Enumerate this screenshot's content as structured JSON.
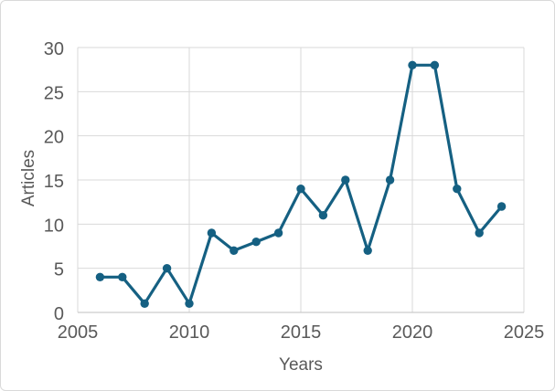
{
  "chart_data": {
    "type": "line",
    "title": "",
    "xlabel": "Years",
    "ylabel": "Articles",
    "series": [
      {
        "name": "Articles",
        "x": [
          2006,
          2007,
          2008,
          2009,
          2010,
          2011,
          2012,
          2013,
          2014,
          2015,
          2016,
          2017,
          2018,
          2019,
          2020,
          2021,
          2022,
          2023,
          2024
        ],
        "values": [
          4,
          4,
          1,
          5,
          1,
          9,
          7,
          8,
          9,
          14,
          11,
          15,
          7,
          15,
          28,
          28,
          14,
          9,
          12
        ]
      }
    ],
    "xlim": [
      2005,
      2025
    ],
    "ylim": [
      0,
      30
    ],
    "x_ticks": [
      2005,
      2010,
      2015,
      2020,
      2025
    ],
    "y_ticks": [
      0,
      5,
      10,
      15,
      20,
      25,
      30
    ],
    "grid": true,
    "legend": "none",
    "marker": "circle",
    "colors": {
      "line": "#156082",
      "marker": "#156082",
      "gridline": "#d9d9d9",
      "axis_line": "#bfbfbf",
      "tick_label": "#595959",
      "axis_title": "#595959",
      "background": "#ffffff",
      "frame_border": "#d9d9d9"
    }
  }
}
